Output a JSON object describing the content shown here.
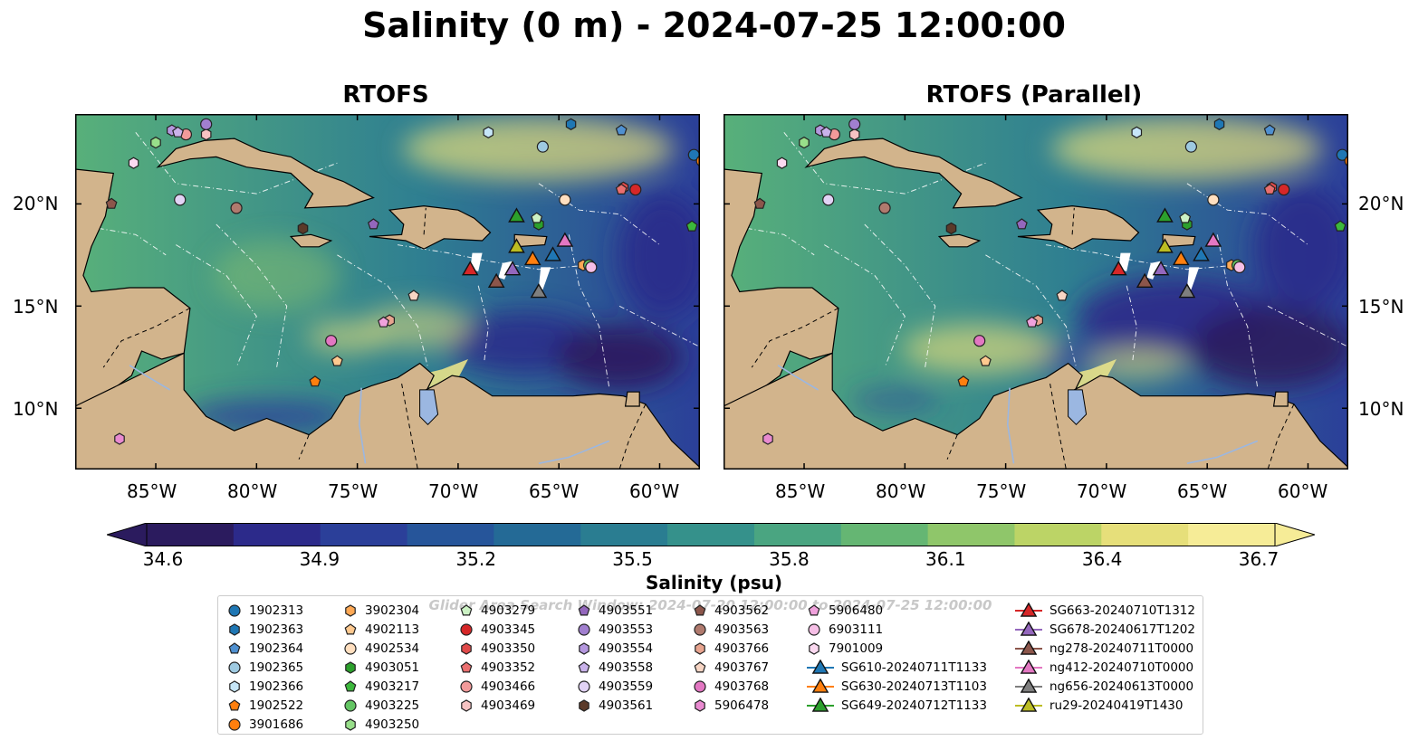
{
  "title": "Salinity (0 m) - 2024-07-25 12:00:00",
  "panels": [
    {
      "title": "RTOFS"
    },
    {
      "title": "RTOFS (Parallel)"
    }
  ],
  "axes": {
    "lon_ticks": [
      "85°W",
      "80°W",
      "75°W",
      "70°W",
      "65°W",
      "60°W"
    ],
    "lat_ticks": [
      "20°N",
      "15°N",
      "10°N"
    ]
  },
  "colorbar": {
    "label": "Salinity (psu)",
    "ticks": [
      "34.6",
      "34.9",
      "35.2",
      "35.5",
      "35.8",
      "36.1",
      "36.4",
      "36.7"
    ],
    "range": [
      34.6,
      36.7
    ],
    "colors": [
      "#2b1b5e",
      "#2c2a8a",
      "#2b3f99",
      "#26559a",
      "#246a96",
      "#2a7d91",
      "#35918b",
      "#4aa581",
      "#65b673",
      "#8fc66a",
      "#bcd466",
      "#e6df7a",
      "#f6ec97"
    ],
    "extend": "both"
  },
  "map_colors": {
    "land": "#d2b48c",
    "lake": "#9bb7e1",
    "deep": "#2a1b64",
    "mid": "#2f7f91",
    "shallow": "#58b07a",
    "fresh_plume": "#e8e28a",
    "search_window": "#ffffff"
  },
  "legend": {
    "title": "Glider Area Search Window: 2024-07-20 12:00:00 to 2024-07-25 12:00:00",
    "items": [
      {
        "label": "1902313",
        "marker": "circle",
        "color": "#1f77b4"
      },
      {
        "label": "1902363",
        "marker": "hexagon",
        "color": "#1f77b4"
      },
      {
        "label": "1902364",
        "marker": "pentagon",
        "color": "#4f90d0"
      },
      {
        "label": "1902365",
        "marker": "circle",
        "color": "#9ecae1"
      },
      {
        "label": "1902366",
        "marker": "hexagon",
        "color": "#c6e6f8"
      },
      {
        "label": "1902522",
        "marker": "pentagon",
        "color": "#ff7f0e"
      },
      {
        "label": "3901686",
        "marker": "circle",
        "color": "#ff7f0e"
      },
      {
        "label": "3902304",
        "marker": "hexagon",
        "color": "#ffa955"
      },
      {
        "label": "4902113",
        "marker": "pentagon",
        "color": "#ffc98f"
      },
      {
        "label": "4902534",
        "marker": "circle",
        "color": "#ffdfbf"
      },
      {
        "label": "4903051",
        "marker": "hexagon",
        "color": "#2ca02c"
      },
      {
        "label": "4903217",
        "marker": "pentagon",
        "color": "#3cb83c"
      },
      {
        "label": "4903225",
        "marker": "circle",
        "color": "#63c563"
      },
      {
        "label": "4903250",
        "marker": "hexagon",
        "color": "#98df8a"
      },
      {
        "label": "4903279",
        "marker": "pentagon",
        "color": "#ccf2c4"
      },
      {
        "label": "4903345",
        "marker": "circle",
        "color": "#d62728"
      },
      {
        "label": "4903350",
        "marker": "hexagon",
        "color": "#e04a4a"
      },
      {
        "label": "4903352",
        "marker": "pentagon",
        "color": "#ea6f6f"
      },
      {
        "label": "4903466",
        "marker": "circle",
        "color": "#f29a9a"
      },
      {
        "label": "4903469",
        "marker": "hexagon",
        "color": "#f7c3c3"
      },
      {
        "label": "4903551",
        "marker": "pentagon",
        "color": "#9467bd"
      },
      {
        "label": "4903553",
        "marker": "circle",
        "color": "#a17fcf"
      },
      {
        "label": "4903554",
        "marker": "hexagon",
        "color": "#b497de"
      },
      {
        "label": "4903558",
        "marker": "pentagon",
        "color": "#c9b2ea"
      },
      {
        "label": "4903559",
        "marker": "circle",
        "color": "#e2d3f5"
      },
      {
        "label": "4903561",
        "marker": "hexagon",
        "color": "#5b3a29"
      },
      {
        "label": "4903562",
        "marker": "pentagon",
        "color": "#8c564b"
      },
      {
        "label": "4903563",
        "marker": "circle",
        "color": "#b07a6e"
      },
      {
        "label": "4903766",
        "marker": "hexagon",
        "color": "#e8a48f"
      },
      {
        "label": "4903767",
        "marker": "pentagon",
        "color": "#f7d5c4"
      },
      {
        "label": "4903768",
        "marker": "circle",
        "color": "#e377c2"
      },
      {
        "label": "5906478",
        "marker": "hexagon",
        "color": "#e98ad0"
      },
      {
        "label": "5906480",
        "marker": "pentagon",
        "color": "#f0a1dc"
      },
      {
        "label": "6903111",
        "marker": "circle",
        "color": "#f6bfe6"
      },
      {
        "label": "7901009",
        "marker": "hexagon",
        "color": "#fbd9f0"
      },
      {
        "label": "SG610-20240711T1133",
        "marker": "triangle-line",
        "color": "#1f77b4"
      },
      {
        "label": "SG630-20240713T1103",
        "marker": "triangle-line",
        "color": "#ff7f0e"
      },
      {
        "label": "SG649-20240712T1133",
        "marker": "triangle-line",
        "color": "#2ca02c"
      },
      {
        "label": "SG663-20240710T1312",
        "marker": "triangle-line",
        "color": "#d62728"
      },
      {
        "label": "SG678-20240617T1202",
        "marker": "triangle-line",
        "color": "#9467bd"
      },
      {
        "label": "ng278-20240711T0000",
        "marker": "triangle-line",
        "color": "#8c564b"
      },
      {
        "label": "ng412-20240710T0000",
        "marker": "triangle-line",
        "color": "#e377c2"
      },
      {
        "label": "ng656-20240613T0000",
        "marker": "triangle-line",
        "color": "#7f7f7f"
      },
      {
        "label": "ru29-20240419T1430",
        "marker": "triangle-line",
        "color": "#bcbd22"
      }
    ]
  },
  "markers": [
    {
      "label": "1902313",
      "lon": -58.3,
      "lat": 22.4
    },
    {
      "label": "1902363",
      "lon": -64.4,
      "lat": 23.9
    },
    {
      "label": "1902364",
      "lon": -61.9,
      "lat": 23.6
    },
    {
      "label": "1902365",
      "lon": -65.8,
      "lat": 22.8
    },
    {
      "label": "1902366",
      "lon": -68.5,
      "lat": 23.5
    },
    {
      "label": "1902522",
      "lon": -77.1,
      "lat": 11.3
    },
    {
      "label": "3901686",
      "lon": -57.9,
      "lat": 22.1
    },
    {
      "label": "3902304",
      "lon": -63.8,
      "lat": 17.0
    },
    {
      "label": "4902113",
      "lon": -76.0,
      "lat": 12.3
    },
    {
      "label": "4902534",
      "lon": -64.7,
      "lat": 20.2
    },
    {
      "label": "4903051",
      "lon": -66.0,
      "lat": 19.0
    },
    {
      "label": "4903217",
      "lon": -58.4,
      "lat": 18.9
    },
    {
      "label": "4903225",
      "lon": -63.5,
      "lat": 17.0
    },
    {
      "label": "4903250",
      "lon": -85.0,
      "lat": 23.0
    },
    {
      "label": "4903279",
      "lon": -66.1,
      "lat": 19.3
    },
    {
      "label": "4903345",
      "lon": -61.2,
      "lat": 20.7
    },
    {
      "label": "4903350",
      "lon": -61.8,
      "lat": 20.8
    },
    {
      "label": "4903352",
      "lon": -61.9,
      "lat": 20.7
    },
    {
      "label": "4903466",
      "lon": -83.5,
      "lat": 23.4
    },
    {
      "label": "4903469",
      "lon": -82.5,
      "lat": 23.4
    },
    {
      "label": "4903551",
      "lon": -74.2,
      "lat": 19.0
    },
    {
      "label": "4903553",
      "lon": -82.5,
      "lat": 23.9
    },
    {
      "label": "4903554",
      "lon": -84.2,
      "lat": 23.6
    },
    {
      "label": "4903558",
      "lon": -83.9,
      "lat": 23.5
    },
    {
      "label": "4903559",
      "lon": -83.8,
      "lat": 20.2
    },
    {
      "label": "4903561",
      "lon": -77.7,
      "lat": 18.8
    },
    {
      "label": "4903562",
      "lon": -87.2,
      "lat": 20.0
    },
    {
      "label": "4903563",
      "lon": -81.0,
      "lat": 19.8
    },
    {
      "label": "4903766",
      "lon": -73.4,
      "lat": 14.3
    },
    {
      "label": "4903767",
      "lon": -72.2,
      "lat": 15.5
    },
    {
      "label": "4903768",
      "lon": -76.3,
      "lat": 13.3
    },
    {
      "label": "5906478",
      "lon": -86.8,
      "lat": 8.5
    },
    {
      "label": "5906480",
      "lon": -73.7,
      "lat": 14.2
    },
    {
      "label": "6903111",
      "lon": -63.4,
      "lat": 16.9
    },
    {
      "label": "7901009",
      "lon": -86.1,
      "lat": 22.0
    }
  ],
  "gliders": [
    {
      "label": "SG610-20240711T1133",
      "lon": -65.3,
      "lat": 17.5
    },
    {
      "label": "SG630-20240713T1103",
      "lon": -66.3,
      "lat": 17.3
    },
    {
      "label": "SG649-20240712T1133",
      "lon": -67.1,
      "lat": 19.4
    },
    {
      "label": "SG663-20240710T1312",
      "lon": -69.4,
      "lat": 16.8
    },
    {
      "label": "SG678-20240617T1202",
      "lon": -67.3,
      "lat": 16.8
    },
    {
      "label": "ng278-20240711T0000",
      "lon": -68.1,
      "lat": 16.2
    },
    {
      "label": "ng412-20240710T0000",
      "lon": -64.7,
      "lat": 18.2
    },
    {
      "label": "ng656-20240613T0000",
      "lon": -66.0,
      "lat": 15.7
    },
    {
      "label": "ru29-20240419T1430",
      "lon": -67.1,
      "lat": 17.9
    }
  ]
}
